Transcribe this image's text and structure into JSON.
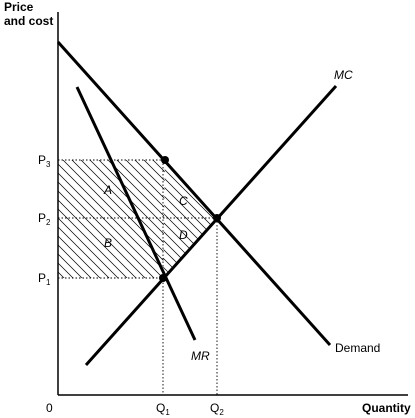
{
  "axes": {
    "y_title_line1": "Price",
    "y_title_line2": "and cost",
    "x_title": "Quantity",
    "origin": "0"
  },
  "prices": {
    "p3": "P",
    "p3_sub": "3",
    "p2": "P",
    "p2_sub": "2",
    "p1": "P",
    "p1_sub": "1"
  },
  "quantities": {
    "q1": "Q",
    "q1_sub": "1",
    "q2": "Q",
    "q2_sub": "2"
  },
  "curves": {
    "mc": "MC",
    "mr": "MR",
    "demand": "Demand"
  },
  "areas": {
    "a": "A",
    "b": "B",
    "c": "C",
    "d": "D"
  }
}
